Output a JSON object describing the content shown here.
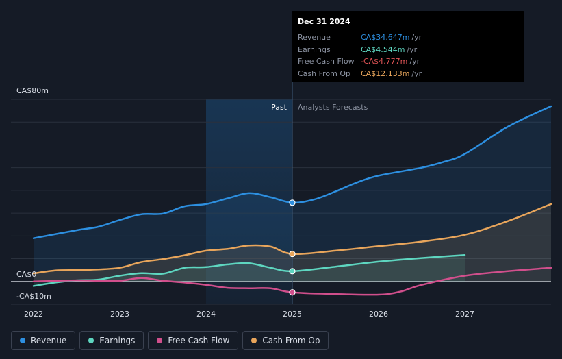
{
  "chart_data": {
    "type": "line",
    "y_axis_labels": [
      "CA$80m",
      "CA$0",
      "-CA$10m"
    ],
    "ylim": [
      -10,
      80
    ],
    "x_tick_labels": [
      "2022",
      "2023",
      "2024",
      "2025",
      "2026",
      "2027"
    ],
    "x_ticks": [
      2022,
      2023,
      2024,
      2025,
      2026,
      2027
    ],
    "xlim": [
      2021.75,
      2028.0
    ],
    "divider_x": 2025.0,
    "past_band_start": 2024.0,
    "past_label": "Past",
    "forecast_label": "Analysts Forecasts",
    "series": [
      {
        "name": "Revenue",
        "color": "#2d8fe0",
        "fill": true,
        "points": [
          [
            2022.0,
            19.0
          ],
          [
            2022.5,
            22.5
          ],
          [
            2022.75,
            24.0
          ],
          [
            2023.0,
            27.0
          ],
          [
            2023.25,
            29.5
          ],
          [
            2023.5,
            29.8
          ],
          [
            2023.75,
            33.0
          ],
          [
            2024.0,
            34.0
          ],
          [
            2024.25,
            36.5
          ],
          [
            2024.5,
            38.8
          ],
          [
            2024.75,
            37.0
          ],
          [
            2025.0,
            34.6
          ],
          [
            2025.25,
            36.0
          ],
          [
            2025.5,
            39.5
          ],
          [
            2025.75,
            43.5
          ],
          [
            2026.0,
            46.5
          ],
          [
            2026.5,
            50.0
          ],
          [
            2026.75,
            52.5
          ],
          [
            2027.0,
            56.0
          ],
          [
            2027.5,
            68.0
          ],
          [
            2028.0,
            77.0
          ]
        ]
      },
      {
        "name": "Earnings",
        "color": "#5ed6c0",
        "fill": true,
        "points": [
          [
            2022.0,
            -2.0
          ],
          [
            2022.25,
            -0.5
          ],
          [
            2022.5,
            0.5
          ],
          [
            2022.75,
            0.8
          ],
          [
            2023.0,
            2.5
          ],
          [
            2023.25,
            3.6
          ],
          [
            2023.5,
            3.4
          ],
          [
            2023.75,
            6.0
          ],
          [
            2024.0,
            6.3
          ],
          [
            2024.25,
            7.5
          ],
          [
            2024.5,
            8.0
          ],
          [
            2024.75,
            6.0
          ],
          [
            2025.0,
            4.5
          ],
          [
            2025.5,
            6.5
          ],
          [
            2026.0,
            8.7
          ],
          [
            2026.5,
            10.3
          ],
          [
            2027.0,
            11.6
          ]
        ]
      },
      {
        "name": "Free Cash Flow",
        "color": "#d14f8c",
        "fill": false,
        "points": [
          [
            2022.0,
            0.0
          ],
          [
            2022.5,
            0.5
          ],
          [
            2022.75,
            0.3
          ],
          [
            2023.0,
            0.3
          ],
          [
            2023.25,
            1.5
          ],
          [
            2023.5,
            0.3
          ],
          [
            2023.75,
            -0.5
          ],
          [
            2024.0,
            -1.5
          ],
          [
            2024.25,
            -2.8
          ],
          [
            2024.5,
            -3.0
          ],
          [
            2024.75,
            -3.0
          ],
          [
            2025.0,
            -4.8
          ],
          [
            2025.5,
            -5.5
          ],
          [
            2026.0,
            -5.8
          ],
          [
            2026.25,
            -4.5
          ],
          [
            2026.5,
            -1.5
          ],
          [
            2027.0,
            2.5
          ],
          [
            2027.5,
            4.5
          ],
          [
            2028.0,
            6.0
          ]
        ]
      },
      {
        "name": "Cash From Op",
        "color": "#e8a55b",
        "fill": true,
        "points": [
          [
            2022.0,
            3.5
          ],
          [
            2022.25,
            4.8
          ],
          [
            2022.5,
            5.0
          ],
          [
            2022.75,
            5.3
          ],
          [
            2023.0,
            6.0
          ],
          [
            2023.25,
            8.5
          ],
          [
            2023.5,
            9.8
          ],
          [
            2023.75,
            11.5
          ],
          [
            2024.0,
            13.5
          ],
          [
            2024.25,
            14.3
          ],
          [
            2024.5,
            15.8
          ],
          [
            2024.75,
            15.3
          ],
          [
            2025.0,
            12.1
          ],
          [
            2025.5,
            13.5
          ],
          [
            2026.0,
            15.5
          ],
          [
            2026.5,
            17.5
          ],
          [
            2027.0,
            20.5
          ],
          [
            2027.5,
            26.5
          ],
          [
            2028.0,
            34.0
          ]
        ]
      }
    ],
    "highlight_x": 2025.0,
    "highlight_values": [
      34.6,
      4.5,
      -4.8,
      12.1
    ]
  },
  "tooltip": {
    "date": "Dec 31 2024",
    "rows": [
      {
        "label": "Revenue",
        "value": "CA$34.647m",
        "unit": "/yr",
        "color": "#2d8fe0"
      },
      {
        "label": "Earnings",
        "value": "CA$4.544m",
        "unit": "/yr",
        "color": "#5ed6c0"
      },
      {
        "label": "Free Cash Flow",
        "value": "-CA$4.777m",
        "unit": "/yr",
        "color": "#e05456"
      },
      {
        "label": "Cash From Op",
        "value": "CA$12.133m",
        "unit": "/yr",
        "color": "#e8a55b"
      }
    ]
  },
  "legend": [
    {
      "label": "Revenue",
      "color": "#2d8fe0"
    },
    {
      "label": "Earnings",
      "color": "#5ed6c0"
    },
    {
      "label": "Free Cash Flow",
      "color": "#d14f8c"
    },
    {
      "label": "Cash From Op",
      "color": "#e8a55b"
    }
  ]
}
